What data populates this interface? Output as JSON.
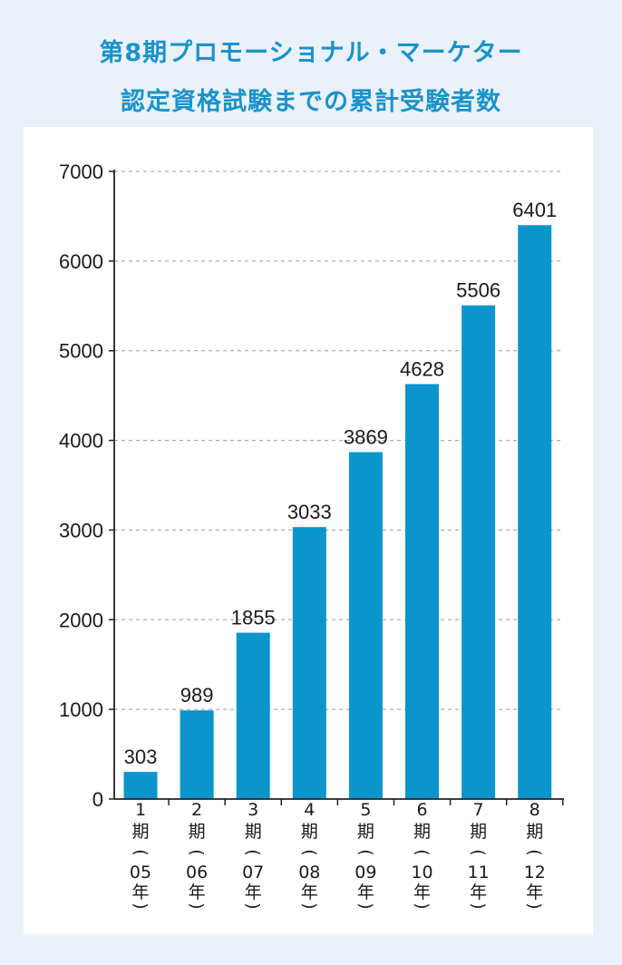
{
  "header": {
    "title_line1": "第8期プロモーショナル・マーケター",
    "title_line2": "認定資格試験までの累計受験者数"
  },
  "colors": {
    "bar": "#0a95cd",
    "title": "#1a93c9",
    "background": "#eaf1f8",
    "panel": "#ffffff",
    "grid": "#9a9a9a"
  },
  "chart_data": {
    "type": "bar",
    "categories": [
      [
        "1",
        "期",
        "(",
        "05",
        "年",
        ")"
      ],
      [
        "2",
        "期",
        "(",
        "06",
        "年",
        ")"
      ],
      [
        "3",
        "期",
        "(",
        "07",
        "年",
        ")"
      ],
      [
        "4",
        "期",
        "(",
        "08",
        "年",
        ")"
      ],
      [
        "5",
        "期",
        "(",
        "09",
        "年",
        ")"
      ],
      [
        "6",
        "期",
        "(",
        "10",
        "年",
        ")"
      ],
      [
        "7",
        "期",
        "(",
        "11",
        "年",
        ")"
      ],
      [
        "8",
        "期",
        "(",
        "12",
        "年",
        ")"
      ]
    ],
    "values": [
      303,
      989,
      1855,
      3033,
      3869,
      4628,
      5506,
      6401
    ],
    "value_labels": [
      "303",
      "989",
      "1855",
      "3033",
      "3869",
      "4628",
      "5506",
      "6401"
    ],
    "yticks": [
      0,
      1000,
      2000,
      3000,
      4000,
      5000,
      6000,
      7000
    ],
    "ytick_labels": [
      "0",
      "1000",
      "2000",
      "3000",
      "4000",
      "5000",
      "6000",
      "7000"
    ],
    "ylim": [
      0,
      7000
    ],
    "grid": "horizontal dashed",
    "legend": "none"
  }
}
